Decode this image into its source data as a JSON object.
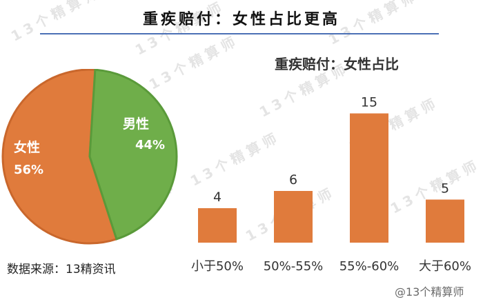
{
  "page": {
    "title": "重疾赔付：女性占比更高",
    "source": "数据来源：13精资讯",
    "watermark": "13个精算师",
    "corner_mark": "@13个精算师"
  },
  "colors": {
    "female": "#e07b3c",
    "male": "#6fae4a",
    "rule": "#4a6fb5"
  },
  "chart_data": [
    {
      "type": "pie",
      "labels": [
        "女性",
        "男性"
      ],
      "values": [
        56,
        44
      ],
      "value_labels": [
        "56%",
        "44%"
      ],
      "colors": [
        "#e07b3c",
        "#6fae4a"
      ]
    },
    {
      "type": "bar",
      "title": "重疾赔付：女性占比",
      "categories": [
        "小于50%",
        "50%-55%",
        "55%-60%",
        "大于60%"
      ],
      "values": [
        4,
        6,
        15,
        5
      ],
      "data_labels": [
        "4",
        "6",
        "15",
        "5"
      ],
      "color": "#e07b3c",
      "ylim": [
        0,
        16
      ]
    }
  ]
}
